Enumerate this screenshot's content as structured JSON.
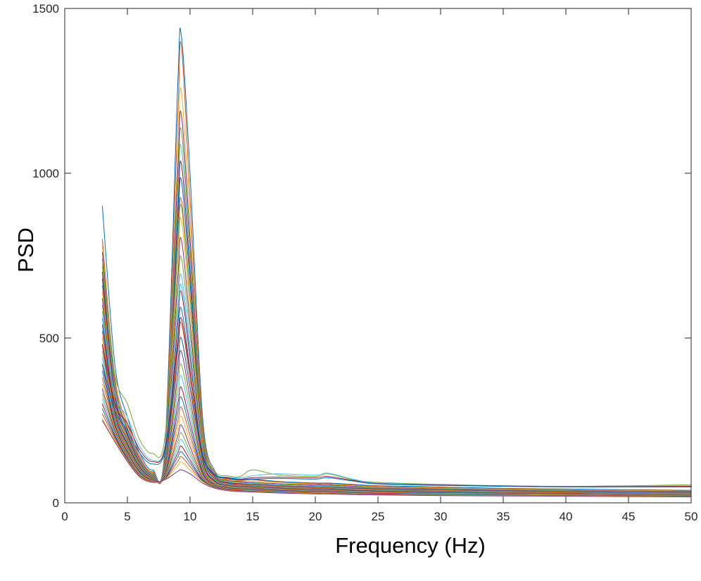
{
  "chart_data": {
    "type": "line",
    "title": "",
    "xlabel": "Frequency (Hz)",
    "ylabel": "PSD",
    "xlim": [
      0,
      50
    ],
    "ylim": [
      0,
      1500
    ],
    "xticks": [
      0,
      5,
      10,
      15,
      20,
      25,
      30,
      35,
      40,
      45,
      50
    ],
    "yticks": [
      0,
      500,
      1000,
      1500
    ],
    "grid": false,
    "legend": "none",
    "colors": [
      "#0072BD",
      "#D95319",
      "#EDB120",
      "#7E2F8E",
      "#77AC30",
      "#4DBEEE",
      "#A2142F"
    ],
    "x": [
      3,
      4,
      5,
      6,
      7,
      8,
      9,
      9.3,
      10,
      11,
      12,
      13,
      14,
      15,
      17,
      20,
      21,
      23,
      25,
      30,
      35,
      40,
      45,
      50
    ],
    "series": [
      {
        "values": [
          900,
          420,
          260,
          150,
          100,
          170,
          1250,
          1420,
          1000,
          260,
          95,
          75,
          70,
          72,
          65,
          60,
          60,
          56,
          52,
          48,
          44,
          42,
          40,
          38
        ]
      },
      {
        "values": [
          800,
          380,
          240,
          140,
          95,
          160,
          1150,
          1390,
          920,
          240,
          90,
          72,
          68,
          70,
          63,
          58,
          58,
          54,
          50,
          46,
          42,
          40,
          38,
          36
        ]
      },
      {
        "values": [
          780,
          370,
          230,
          135,
          92,
          150,
          1050,
          1250,
          850,
          225,
          88,
          70,
          66,
          66,
          62,
          56,
          56,
          52,
          48,
          45,
          42,
          40,
          38,
          36
        ]
      },
      {
        "values": [
          760,
          360,
          225,
          132,
          90,
          145,
          990,
          1180,
          800,
          215,
          86,
          68,
          64,
          62,
          58,
          54,
          54,
          50,
          46,
          43,
          40,
          38,
          36,
          35
        ]
      },
      {
        "values": [
          740,
          350,
          220,
          128,
          88,
          140,
          940,
          1130,
          760,
          205,
          84,
          66,
          62,
          60,
          56,
          52,
          52,
          48,
          45,
          42,
          39,
          37,
          35,
          34
        ]
      },
      {
        "values": [
          720,
          340,
          215,
          125,
          86,
          135,
          900,
          1080,
          730,
          195,
          82,
          64,
          60,
          58,
          54,
          50,
          50,
          47,
          44,
          41,
          38,
          36,
          34,
          33
        ]
      },
      {
        "values": [
          700,
          330,
          210,
          122,
          84,
          130,
          860,
          1030,
          700,
          188,
          80,
          62,
          58,
          56,
          52,
          48,
          48,
          45,
          43,
          40,
          37,
          35,
          33,
          32
        ]
      },
      {
        "values": [
          680,
          320,
          205,
          120,
          83,
          126,
          820,
          980,
          665,
          180,
          78,
          60,
          56,
          55,
          51,
          47,
          47,
          44,
          42,
          39,
          36,
          34,
          32,
          31
        ]
      },
      {
        "values": [
          660,
          312,
          200,
          118,
          82,
          122,
          770,
          920,
          625,
          172,
          76,
          58,
          55,
          54,
          50,
          46,
          46,
          43,
          41,
          38,
          35,
          33,
          31,
          30
        ]
      },
      {
        "values": [
          640,
          304,
          196,
          116,
          81,
          118,
          720,
          860,
          585,
          165,
          74,
          57,
          54,
          53,
          49,
          45,
          45,
          42,
          40,
          37,
          34,
          32,
          30,
          29
        ]
      },
      {
        "values": [
          620,
          296,
          192,
          114,
          80,
          114,
          670,
          800,
          545,
          158,
          72,
          56,
          53,
          52,
          48,
          44,
          44,
          41,
          39,
          36,
          33,
          31,
          29,
          28
        ]
      },
      {
        "values": [
          600,
          290,
          188,
          112,
          79,
          110,
          625,
          745,
          510,
          150,
          70,
          55,
          52,
          51,
          47,
          43,
          43,
          40,
          38,
          35,
          32,
          30,
          28,
          27
        ]
      },
      {
        "values": [
          580,
          284,
          184,
          110,
          78,
          106,
          580,
          690,
          475,
          142,
          68,
          54,
          51,
          50,
          46,
          42,
          42,
          39,
          37,
          34,
          31,
          29,
          28,
          27
        ]
      },
      {
        "values": [
          560,
          278,
          180,
          108,
          77,
          102,
          535,
          640,
          440,
          135,
          66,
          53,
          50,
          49,
          45,
          41,
          41,
          38,
          36,
          33,
          30,
          29,
          27,
          26
        ]
      },
      {
        "values": [
          540,
          272,
          176,
          106,
          76,
          98,
          495,
          590,
          405,
          128,
          64,
          52,
          49,
          48,
          44,
          40,
          40,
          37,
          35,
          32,
          30,
          28,
          27,
          26
        ]
      },
      {
        "values": [
          520,
          266,
          172,
          104,
          75,
          95,
          455,
          545,
          375,
          122,
          62,
          51,
          48,
          47,
          43,
          39,
          39,
          36,
          34,
          31,
          29,
          28,
          26,
          25
        ]
      },
      {
        "values": [
          500,
          260,
          168,
          102,
          74,
          92,
          420,
          500,
          345,
          116,
          60,
          50,
          47,
          46,
          42,
          38,
          38,
          35,
          33,
          30,
          28,
          27,
          26,
          25
        ]
      },
      {
        "values": [
          480,
          255,
          165,
          100,
          73,
          90,
          385,
          460,
          318,
          110,
          58,
          49,
          46,
          45,
          41,
          37,
          37,
          34,
          32,
          30,
          28,
          27,
          25,
          24
        ]
      },
      {
        "values": [
          460,
          250,
          162,
          98,
          72,
          88,
          355,
          420,
          292,
          105,
          57,
          48,
          45,
          44,
          40,
          36,
          36,
          33,
          31,
          29,
          27,
          26,
          25,
          24
        ]
      },
      {
        "values": [
          440,
          245,
          158,
          96,
          71,
          86,
          325,
          385,
          268,
          100,
          56,
          47,
          44,
          43,
          39,
          35,
          35,
          32,
          30,
          28,
          27,
          26,
          24,
          23
        ]
      },
      {
        "values": [
          420,
          240,
          155,
          94,
          70,
          84,
          295,
          350,
          245,
          95,
          55,
          46,
          43,
          42,
          38,
          34,
          34,
          31,
          29,
          27,
          26,
          25,
          24,
          23
        ]
      },
      {
        "values": [
          400,
          235,
          152,
          92,
          69,
          82,
          270,
          320,
          225,
          90,
          54,
          45,
          42,
          41,
          37,
          33,
          33,
          30,
          28,
          27,
          26,
          25,
          23,
          22
        ]
      },
      {
        "values": [
          380,
          230,
          150,
          90,
          68,
          80,
          245,
          290,
          205,
          86,
          53,
          44,
          41,
          40,
          36,
          32,
          32,
          29,
          28,
          26,
          25,
          24,
          23,
          22
        ]
      },
      {
        "values": [
          360,
          225,
          147,
          88,
          67,
          78,
          222,
          262,
          186,
          82,
          52,
          43,
          40,
          39,
          35,
          31,
          31,
          29,
          27,
          26,
          25,
          24,
          22,
          21
        ]
      },
      {
        "values": [
          345,
          220,
          144,
          86,
          66,
          77,
          200,
          236,
          170,
          78,
          51,
          42,
          39,
          38,
          34,
          30,
          30,
          28,
          27,
          25,
          24,
          23,
          22,
          21
        ]
      },
      {
        "values": [
          330,
          215,
          141,
          85,
          66,
          76,
          182,
          212,
          155,
          75,
          50,
          41,
          38,
          37,
          33,
          30,
          30,
          28,
          26,
          25,
          24,
          23,
          22,
          21
        ]
      },
      {
        "values": [
          315,
          210,
          138,
          84,
          65,
          75,
          165,
          192,
          142,
          72,
          49,
          40,
          37,
          36,
          33,
          29,
          29,
          27,
          26,
          24,
          23,
          22,
          21,
          20
        ]
      },
      {
        "values": [
          300,
          205,
          135,
          83,
          65,
          74,
          150,
          172,
          130,
          70,
          48,
          40,
          37,
          35,
          32,
          29,
          29,
          27,
          25,
          24,
          23,
          22,
          21,
          20
        ]
      },
      {
        "values": [
          285,
          200,
          132,
          82,
          64,
          73,
          138,
          155,
          120,
          68,
          47,
          39,
          36,
          35,
          32,
          28,
          28,
          26,
          25,
          24,
          23,
          22,
          21,
          20
        ]
      },
      {
        "values": [
          270,
          195,
          130,
          81,
          64,
          72,
          125,
          140,
          110,
          66,
          46,
          39,
          36,
          34,
          31,
          28,
          28,
          26,
          25,
          23,
          22,
          21,
          20,
          19
        ]
      },
      {
        "values": [
          255,
          190,
          128,
          80,
          63,
          71,
          112,
          124,
          100,
          64,
          45,
          38,
          35,
          34,
          31,
          28,
          28,
          26,
          24,
          23,
          22,
          21,
          20,
          19
        ]
      },
      {
        "values": [
          250,
          185,
          125,
          78,
          62,
          70,
          95,
          100,
          88,
          60,
          44,
          37,
          34,
          33,
          30,
          27,
          27,
          25,
          24,
          22,
          21,
          20,
          19,
          18
        ]
      },
      {
        "values": [
          720,
          390,
          300,
          190,
          150,
          200,
          760,
          900,
          620,
          190,
          95,
          82,
          80,
          100,
          85,
          80,
          88,
          70,
          62,
          56,
          52,
          50,
          52,
          55
        ]
      },
      {
        "values": [
          560,
          330,
          260,
          170,
          130,
          175,
          560,
          660,
          460,
          160,
          88,
          78,
          76,
          82,
          88,
          84,
          90,
          72,
          60,
          55,
          52,
          50,
          50,
          52
        ]
      },
      {
        "values": [
          480,
          300,
          240,
          160,
          125,
          165,
          470,
          560,
          395,
          150,
          86,
          76,
          72,
          76,
          78,
          76,
          80,
          68,
          58,
          54,
          51,
          49,
          49,
          50
        ]
      },
      {
        "values": [
          420,
          280,
          220,
          150,
          118,
          155,
          420,
          500,
          350,
          140,
          84,
          74,
          70,
          72,
          74,
          72,
          76,
          66,
          57,
          53,
          50,
          48,
          48,
          48
        ]
      }
    ]
  }
}
